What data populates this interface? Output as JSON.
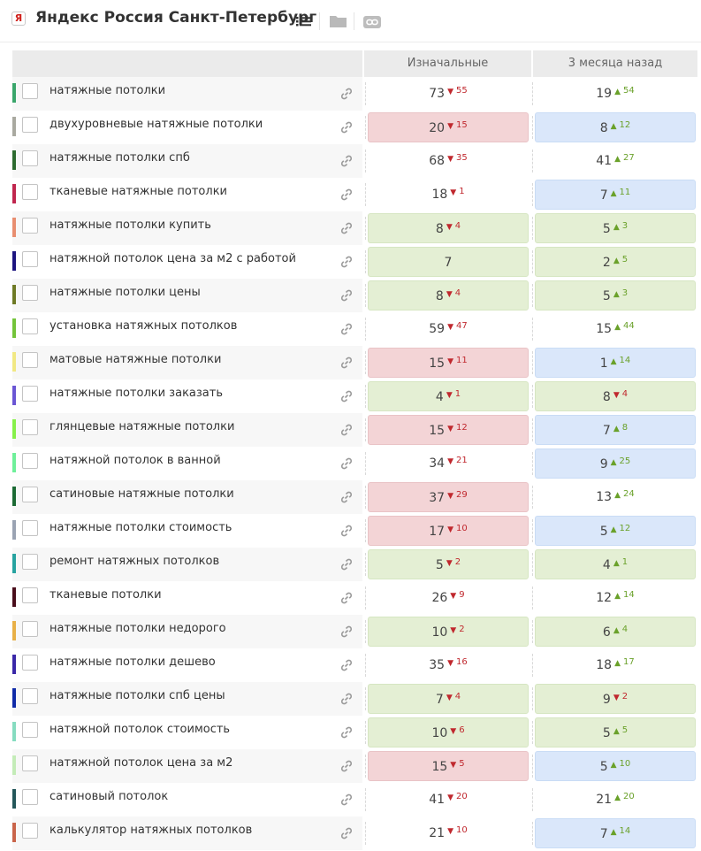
{
  "header": {
    "logo_letter": "Я",
    "title": "Яндекс Россия Санкт-Петербург",
    "icons": [
      "list-icon",
      "folder-icon",
      "link-icon"
    ]
  },
  "columns": {
    "initial": "Изначальные",
    "three_months": "3 месяца назад"
  },
  "colors": {
    "red_bg": "#f3d4d6",
    "green_bg": "#e4efd4",
    "blue_bg": "#dae7fa",
    "down": "#c0282e",
    "up": "#6aa12a"
  },
  "rows": [
    {
      "color": "#3aa66b",
      "keyword": "натяжные потолки",
      "c1": {
        "value": "73",
        "dir": "down",
        "delta": "55",
        "bg": "none"
      },
      "c2": {
        "value": "19",
        "dir": "up",
        "delta": "54",
        "bg": "none"
      }
    },
    {
      "color": "#a9a9a0",
      "keyword": "двухуровневые натяжные потолки",
      "c1": {
        "value": "20",
        "dir": "down",
        "delta": "15",
        "bg": "red"
      },
      "c2": {
        "value": "8",
        "dir": "up",
        "delta": "12",
        "bg": "blue"
      }
    },
    {
      "color": "#2d6b2f",
      "keyword": "натяжные потолки спб",
      "c1": {
        "value": "68",
        "dir": "down",
        "delta": "35",
        "bg": "none"
      },
      "c2": {
        "value": "41",
        "dir": "up",
        "delta": "27",
        "bg": "none"
      }
    },
    {
      "color": "#c0264e",
      "keyword": "тканевые натяжные потолки",
      "c1": {
        "value": "18",
        "dir": "down",
        "delta": "1",
        "bg": "none"
      },
      "c2": {
        "value": "7",
        "dir": "up",
        "delta": "11",
        "bg": "blue"
      }
    },
    {
      "color": "#e88e70",
      "keyword": "натяжные потолки купить",
      "c1": {
        "value": "8",
        "dir": "down",
        "delta": "4",
        "bg": "green"
      },
      "c2": {
        "value": "5",
        "dir": "up",
        "delta": "3",
        "bg": "green"
      }
    },
    {
      "color": "#1d1580",
      "keyword": "натяжной потолок цена за м2 с работой",
      "c1": {
        "value": "7",
        "dir": "",
        "delta": "",
        "bg": "green"
      },
      "c2": {
        "value": "2",
        "dir": "up",
        "delta": "5",
        "bg": "green"
      }
    },
    {
      "color": "#6e7a25",
      "keyword": "натяжные потолки цены",
      "c1": {
        "value": "8",
        "dir": "down",
        "delta": "4",
        "bg": "green"
      },
      "c2": {
        "value": "5",
        "dir": "up",
        "delta": "3",
        "bg": "green"
      }
    },
    {
      "color": "#74c43a",
      "keyword": "установка натяжных потолков",
      "c1": {
        "value": "59",
        "dir": "down",
        "delta": "47",
        "bg": "none"
      },
      "c2": {
        "value": "15",
        "dir": "up",
        "delta": "44",
        "bg": "none"
      }
    },
    {
      "color": "#f1e883",
      "keyword": "матовые натяжные потолки",
      "c1": {
        "value": "15",
        "dir": "down",
        "delta": "11",
        "bg": "red"
      },
      "c2": {
        "value": "1",
        "dir": "up",
        "delta": "14",
        "bg": "blue"
      }
    },
    {
      "color": "#6a56d4",
      "keyword": "натяжные потолки заказать",
      "c1": {
        "value": "4",
        "dir": "down",
        "delta": "1",
        "bg": "green"
      },
      "c2": {
        "value": "8",
        "dir": "down",
        "delta": "4",
        "bg": "green"
      }
    },
    {
      "color": "#86f04a",
      "keyword": "глянцевые натяжные потолки",
      "c1": {
        "value": "15",
        "dir": "down",
        "delta": "12",
        "bg": "red"
      },
      "c2": {
        "value": "7",
        "dir": "up",
        "delta": "8",
        "bg": "blue"
      }
    },
    {
      "color": "#6ff09a",
      "keyword": "натяжной потолок в ванной",
      "c1": {
        "value": "34",
        "dir": "down",
        "delta": "21",
        "bg": "none"
      },
      "c2": {
        "value": "9",
        "dir": "up",
        "delta": "25",
        "bg": "blue"
      }
    },
    {
      "color": "#1c6a34",
      "keyword": "сатиновые натяжные потолки",
      "c1": {
        "value": "37",
        "dir": "down",
        "delta": "29",
        "bg": "red"
      },
      "c2": {
        "value": "13",
        "dir": "up",
        "delta": "24",
        "bg": "none"
      }
    },
    {
      "color": "#9aa3b3",
      "keyword": "натяжные потолки стоимость",
      "c1": {
        "value": "17",
        "dir": "down",
        "delta": "10",
        "bg": "red"
      },
      "c2": {
        "value": "5",
        "dir": "up",
        "delta": "12",
        "bg": "blue"
      }
    },
    {
      "color": "#27a3a0",
      "keyword": "ремонт натяжных потолков",
      "c1": {
        "value": "5",
        "dir": "down",
        "delta": "2",
        "bg": "green"
      },
      "c2": {
        "value": "4",
        "dir": "up",
        "delta": "1",
        "bg": "green"
      }
    },
    {
      "color": "#4a0e1c",
      "keyword": "тканевые потолки",
      "c1": {
        "value": "26",
        "dir": "down",
        "delta": "9",
        "bg": "none"
      },
      "c2": {
        "value": "12",
        "dir": "up",
        "delta": "14",
        "bg": "none"
      }
    },
    {
      "color": "#e8b047",
      "keyword": "натяжные потолки недорого",
      "c1": {
        "value": "10",
        "dir": "down",
        "delta": "2",
        "bg": "green"
      },
      "c2": {
        "value": "6",
        "dir": "up",
        "delta": "4",
        "bg": "green"
      }
    },
    {
      "color": "#3a28a8",
      "keyword": "натяжные потолки дешево",
      "c1": {
        "value": "35",
        "dir": "down",
        "delta": "16",
        "bg": "none"
      },
      "c2": {
        "value": "18",
        "dir": "up",
        "delta": "17",
        "bg": "none"
      }
    },
    {
      "color": "#102ba8",
      "keyword": "натяжные потолки спб цены",
      "c1": {
        "value": "7",
        "dir": "down",
        "delta": "4",
        "bg": "green"
      },
      "c2": {
        "value": "9",
        "dir": "down",
        "delta": "2",
        "bg": "green"
      }
    },
    {
      "color": "#86dcc0",
      "keyword": "натяжной потолок стоимость",
      "c1": {
        "value": "10",
        "dir": "down",
        "delta": "6",
        "bg": "green"
      },
      "c2": {
        "value": "5",
        "dir": "up",
        "delta": "5",
        "bg": "green"
      }
    },
    {
      "color": "#c4ecb8",
      "keyword": "натяжной потолок цена за м2",
      "c1": {
        "value": "15",
        "dir": "down",
        "delta": "5",
        "bg": "red"
      },
      "c2": {
        "value": "5",
        "dir": "up",
        "delta": "10",
        "bg": "blue"
      }
    },
    {
      "color": "#24575a",
      "keyword": "сатиновый потолок",
      "c1": {
        "value": "41",
        "dir": "down",
        "delta": "20",
        "bg": "none"
      },
      "c2": {
        "value": "21",
        "dir": "up",
        "delta": "20",
        "bg": "none"
      }
    },
    {
      "color": "#c9644a",
      "keyword": "калькулятор натяжных потолков",
      "c1": {
        "value": "21",
        "dir": "down",
        "delta": "10",
        "bg": "none"
      },
      "c2": {
        "value": "7",
        "dir": "up",
        "delta": "14",
        "bg": "blue"
      }
    }
  ]
}
